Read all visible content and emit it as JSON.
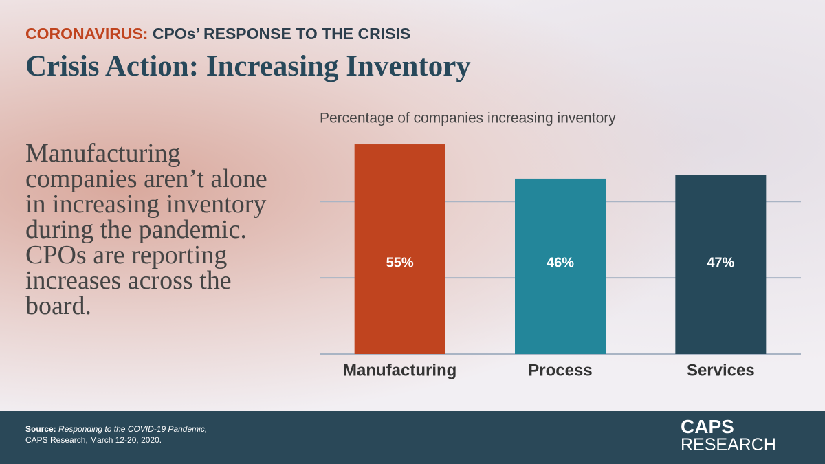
{
  "header": {
    "kicker": "CORONAVIRUS:",
    "kicker_rest": "CPOs’ RESPONSE TO THE CRISIS",
    "title": "Crisis Action:  Increasing Inventory"
  },
  "body_text": "Manufacturing companies aren’t alone in increasing inventory during the pandemic. CPOs are reporting increases across the board.",
  "chart_data": {
    "type": "bar",
    "title": "Percentage of companies increasing inventory",
    "categories": [
      "Manufacturing",
      "Process",
      "Services"
    ],
    "values": [
      55,
      46,
      47
    ],
    "value_labels": [
      "55%",
      "46%",
      "47%"
    ],
    "colors": [
      "#c0441f",
      "#23869a",
      "#26495a"
    ],
    "ylim": [
      0,
      60
    ],
    "yticks": [
      0,
      20,
      40
    ],
    "grid": true
  },
  "footer": {
    "source_label": "Source:",
    "source_title": "Responding to the COVID-19 Pandemic,",
    "source_detail": "CAPS Research, March 12-20, 2020.",
    "logo_top": "CAPS",
    "logo_bottom": "RESEARCH"
  }
}
